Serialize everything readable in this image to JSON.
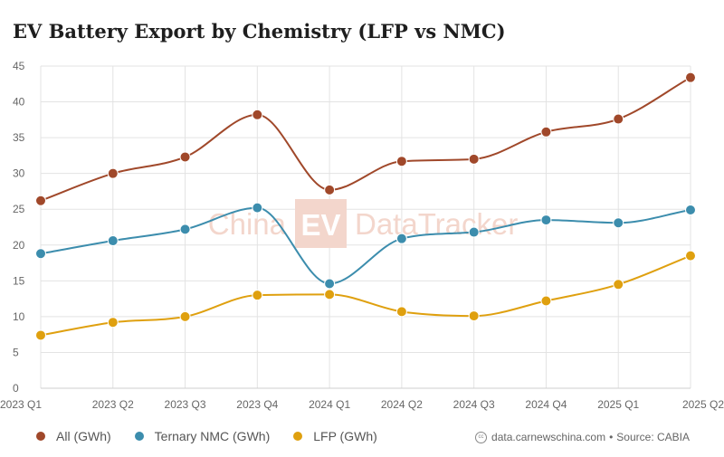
{
  "title": "EV Battery Export by Chemistry (LFP vs NMC)",
  "watermark": {
    "left_text": "China",
    "badge_text": "EV",
    "right_text": "DataTracker"
  },
  "colors": {
    "all": "#a0482a",
    "nmc": "#3c8dad",
    "lfp": "#dfa00f",
    "grid": "#e3e3e3",
    "watermark": "#f3d6cc"
  },
  "chart_data": {
    "type": "line",
    "title": "EV Battery Export by Chemistry (LFP vs NMC)",
    "xlabel": "",
    "ylabel": "",
    "ylim": [
      0,
      45
    ],
    "yticks": [
      0,
      5,
      10,
      15,
      20,
      25,
      30,
      35,
      40,
      45
    ],
    "grid": true,
    "categories": [
      "2023 Q1",
      "2023 Q2",
      "2023 Q3",
      "2023 Q4",
      "2024 Q1",
      "2024 Q2",
      "2024 Q3",
      "2024 Q4",
      "2025 Q1",
      "2025 Q2"
    ],
    "series": [
      {
        "key": "all",
        "name": "All (GWh)",
        "values": [
          26.2,
          30.0,
          32.3,
          38.2,
          27.7,
          31.7,
          32.0,
          35.8,
          37.6,
          43.4
        ]
      },
      {
        "key": "nmc",
        "name": "Ternary NMC (GWh)",
        "values": [
          18.8,
          20.6,
          22.2,
          25.2,
          14.6,
          20.9,
          21.8,
          23.5,
          23.1,
          24.9
        ]
      },
      {
        "key": "lfp",
        "name": "LFP (GWh)",
        "values": [
          7.4,
          9.2,
          10.0,
          13.0,
          13.1,
          10.7,
          10.1,
          12.2,
          14.5,
          18.5
        ]
      }
    ],
    "legend_position": "bottom-left"
  },
  "source": {
    "site": "data.carnewschina.com",
    "separator": "•",
    "text": "Source: CABIA"
  }
}
